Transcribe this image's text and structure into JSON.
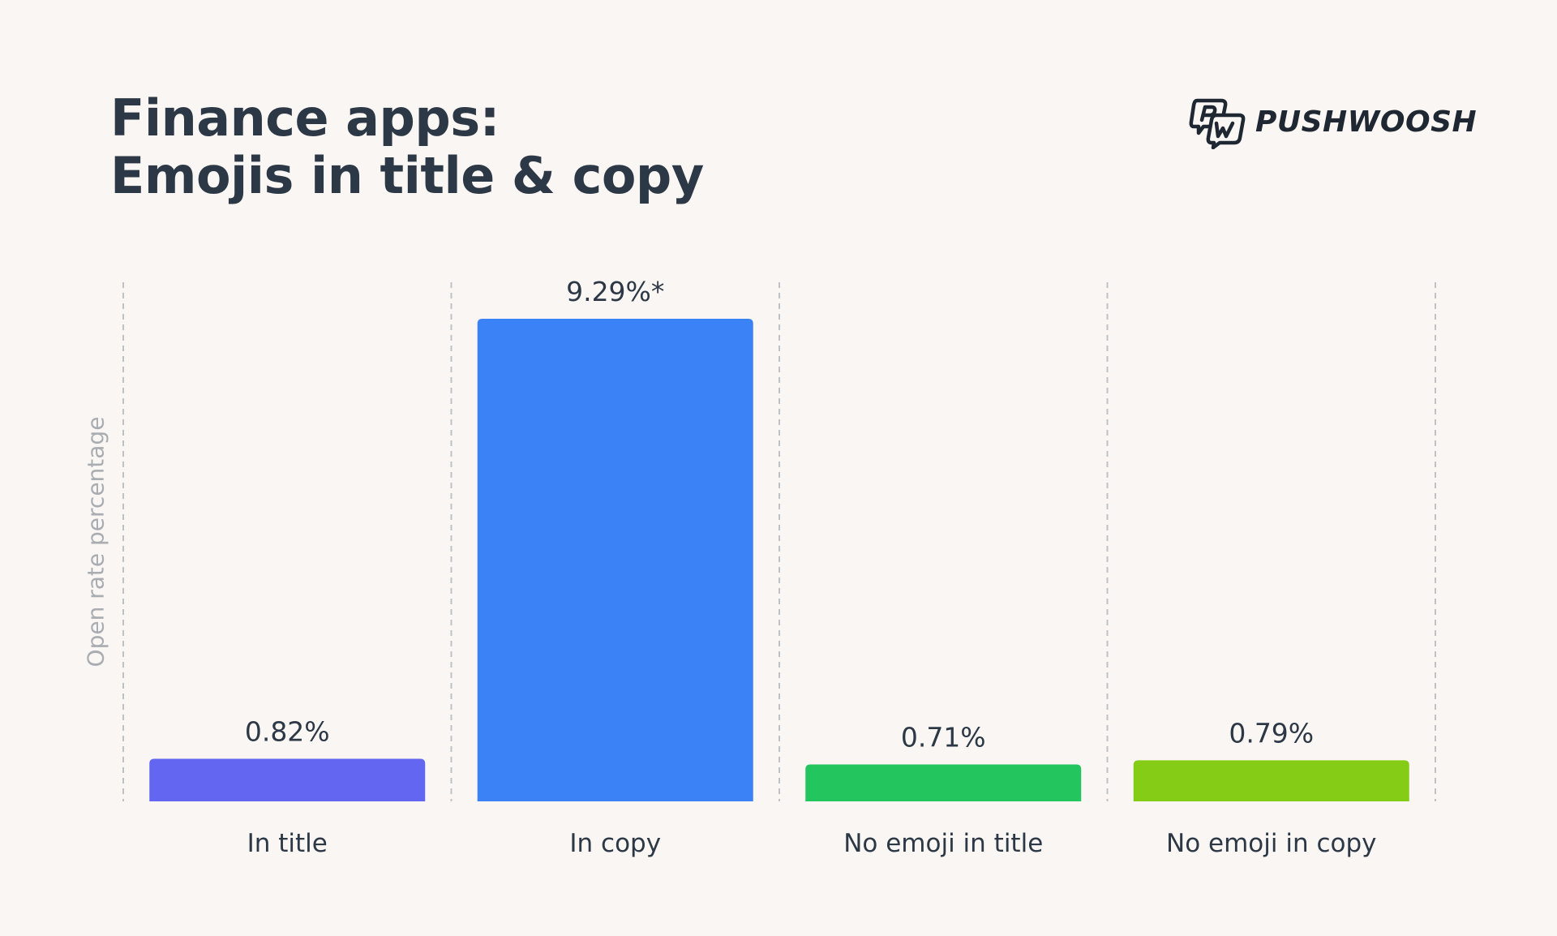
{
  "header": {
    "title_line1": "Finance apps:",
    "title_line2": "Emojis in title & copy",
    "logo_text": "PUSHWOOSH",
    "logo_icon": "pushwoosh-pw-logo-icon"
  },
  "chart_data": {
    "type": "bar",
    "title": "Finance apps: Emojis in title & copy",
    "ylabel": "Open rate percentage",
    "xlabel": "",
    "categories": [
      "In title",
      "In copy",
      "No emoji in title",
      "No emoji in copy"
    ],
    "values": [
      0.82,
      9.29,
      0.71,
      0.79
    ],
    "value_labels": [
      "0.82%",
      "9.29%*",
      "0.71%",
      "0.79%"
    ],
    "colors": [
      "#6366f1",
      "#3b82f6",
      "#22c55e",
      "#84cc16"
    ],
    "ylim": [
      0,
      9.29
    ],
    "grid": "vertical dashed separators",
    "legend": "none"
  }
}
